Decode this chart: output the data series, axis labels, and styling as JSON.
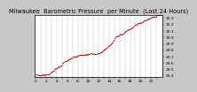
{
  "title": "Milwaukee  Barometric Pressure  per Minute  (Last 24 Hours)",
  "background_color": "#c8c8c8",
  "plot_bg_color": "#ffffff",
  "grid_color": "#888888",
  "line_color": "#cc0000",
  "y_min": 29.4,
  "y_max": 30.35,
  "y_ticks": [
    29.4,
    29.5,
    29.6,
    29.7,
    29.8,
    29.9,
    30.0,
    30.1,
    30.2,
    30.3
  ],
  "n_points": 1440,
  "title_fontsize": 4.8,
  "tick_fontsize": 3.2,
  "seed": 42
}
